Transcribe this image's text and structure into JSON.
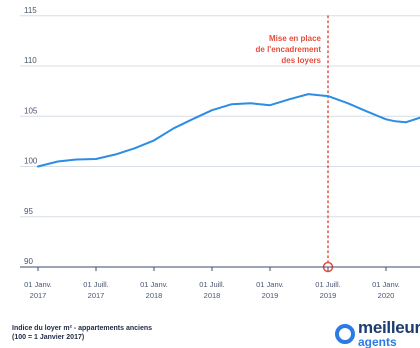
{
  "chart_data": {
    "type": "line",
    "title": "",
    "xlabel": "",
    "ylabel": "",
    "ylim": [
      90,
      115
    ],
    "yticks": [
      90,
      95,
      100,
      105,
      110,
      115
    ],
    "xticks": [
      {
        "line1": "01 Janv.",
        "line2": "2017",
        "x": 2017.0
      },
      {
        "line1": "01 Juill.",
        "line2": "2017",
        "x": 2017.5
      },
      {
        "line1": "01 Janv.",
        "line2": "2018",
        "x": 2018.0
      },
      {
        "line1": "01 Juill.",
        "line2": "2018",
        "x": 2018.5
      },
      {
        "line1": "01 Janv.",
        "line2": "2019",
        "x": 2019.0
      },
      {
        "line1": "01 Juill.",
        "line2": "2019",
        "x": 2019.5
      },
      {
        "line1": "01 Janv.",
        "line2": "2020",
        "x": 2020.0
      }
    ],
    "series": [
      {
        "color": "#2b8de3",
        "x": [
          2017.0,
          2017.17,
          2017.33,
          2017.5,
          2017.67,
          2017.83,
          2018.0,
          2018.17,
          2018.33,
          2018.5,
          2018.67,
          2018.83,
          2019.0,
          2019.17,
          2019.33,
          2019.5,
          2019.67,
          2019.83,
          2020.0,
          2020.08,
          2020.17,
          2020.33,
          2020.44
        ],
        "y": [
          100.0,
          100.5,
          100.7,
          100.75,
          101.2,
          101.8,
          102.6,
          103.8,
          104.7,
          105.6,
          106.2,
          106.3,
          106.1,
          106.7,
          107.2,
          107.0,
          106.3,
          105.5,
          104.7,
          104.5,
          104.4,
          105.0,
          105.9
        ]
      }
    ],
    "annotation": {
      "x": 2019.5,
      "lines": [
        "Mise en place",
        "de l'encadrement",
        "des loyers"
      ],
      "color": "#e84c3d"
    },
    "grid": true
  },
  "footer": {
    "title_line1": "Indice du loyer m² - appartements anciens",
    "title_line2": "(100 = 1 Janvier 2017)"
  },
  "logo": {
    "line1": "meilleurs",
    "line2": "agents"
  },
  "colors": {
    "grid": "#d7dde5",
    "axis": "#3b4a6b",
    "tick_text": "#4a5670"
  }
}
